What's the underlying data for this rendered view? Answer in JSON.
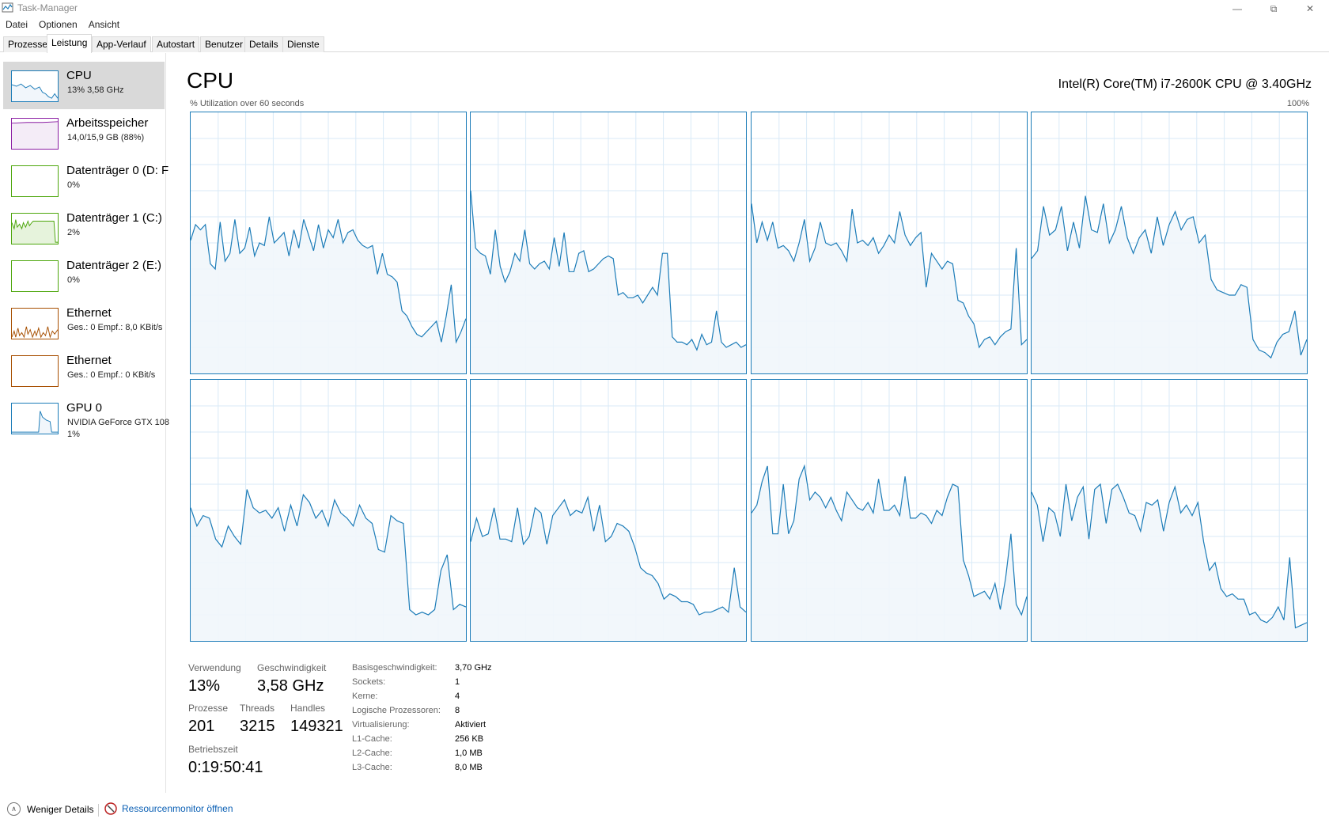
{
  "window": {
    "title": "Task-Manager"
  },
  "menu": [
    "Datei",
    "Optionen",
    "Ansicht"
  ],
  "tabs": [
    "Prozesse",
    "Leistung",
    "App-Verlauf",
    "Autostart",
    "Benutzer",
    "Details",
    "Dienste"
  ],
  "sidebar": [
    {
      "name": "CPU",
      "sub": "13% 3,58 GHz",
      "sub2": "",
      "color": "#1c7cb8"
    },
    {
      "name": "Arbeitsspeicher",
      "sub": "14,0/15,9 GB (88%)",
      "sub2": "",
      "color": "#8b1ea3"
    },
    {
      "name": "Datenträger 0 (D: F",
      "sub": "0%",
      "sub2": "",
      "color": "#4da60c"
    },
    {
      "name": "Datenträger 1 (C:)",
      "sub": "2%",
      "sub2": "",
      "color": "#4da60c"
    },
    {
      "name": "Datenträger 2 (E:)",
      "sub": "0%",
      "sub2": "",
      "color": "#4da60c"
    },
    {
      "name": "Ethernet",
      "sub": "Ges.: 0 Empf.: 8,0 KBit/s",
      "sub2": "",
      "color": "#a74f01"
    },
    {
      "name": "Ethernet",
      "sub": "Ges.: 0 Empf.: 0 KBit/s",
      "sub2": "",
      "color": "#a74f01"
    },
    {
      "name": "GPU 0",
      "sub": "NVIDIA GeForce GTX 108",
      "sub2": "1%",
      "color": "#1c7cb8"
    }
  ],
  "main": {
    "title": "CPU",
    "processor": "Intel(R) Core(TM) i7-2600K CPU @ 3.40GHz",
    "graph_label": "% Utilization over 60 seconds",
    "graph_max": "100%"
  },
  "stats": {
    "usage_label": "Verwendung",
    "usage_value": "13%",
    "speed_label": "Geschwindigkeit",
    "speed_value": "3,58 GHz",
    "processes_label": "Prozesse",
    "processes_value": "201",
    "threads_label": "Threads",
    "threads_value": "3215",
    "handles_label": "Handles",
    "handles_value": "149321",
    "uptime_label": "Betriebszeit",
    "uptime_value": "0:19:50:41"
  },
  "specs": [
    {
      "label": "Basisgeschwindigkeit:",
      "value": "3,70 GHz"
    },
    {
      "label": "Sockets:",
      "value": "1"
    },
    {
      "label": "Kerne:",
      "value": "4"
    },
    {
      "label": "Logische Prozessoren:",
      "value": "8"
    },
    {
      "label": "Virtualisierung:",
      "value": "Aktiviert"
    },
    {
      "label": "L1-Cache:",
      "value": "256 KB"
    },
    {
      "label": "L2-Cache:",
      "value": "1,0 MB"
    },
    {
      "label": "L3-Cache:",
      "value": "8,0 MB"
    }
  ],
  "footer": {
    "fewer_details": "Weniger Details",
    "resource_monitor": "Ressourcenmonitor öffnen"
  },
  "colors": {
    "cpu": "#1c7cb8",
    "cpu_fill": "#f1f6fb",
    "grid": "#d9eaf7"
  },
  "chart_data": {
    "type": "line",
    "ylim": [
      0,
      100
    ],
    "x_span_seconds": 60,
    "series": [
      {
        "values": [
          51,
          57,
          55,
          57,
          42,
          40,
          58,
          43,
          46,
          59,
          46,
          48,
          56,
          45,
          50,
          49,
          60,
          50,
          52,
          54,
          45,
          55,
          48,
          59,
          53,
          47,
          57,
          48,
          55,
          52,
          59,
          50,
          54,
          55,
          51,
          49,
          48,
          49,
          38,
          46,
          38,
          37,
          35,
          24,
          22,
          18,
          15,
          14,
          16,
          18,
          20,
          12,
          22,
          34,
          12,
          16,
          21
        ]
      },
      {
        "values": [
          70,
          48,
          46,
          45,
          38,
          55,
          41,
          35,
          39,
          46,
          43,
          55,
          42,
          40,
          42,
          43,
          40,
          52,
          41,
          54,
          39,
          39,
          46,
          47,
          39,
          40,
          42,
          44,
          45,
          44,
          30,
          31,
          29,
          29,
          30,
          27,
          30,
          33,
          30,
          46,
          46,
          14,
          12,
          12,
          11,
          13,
          9,
          15,
          11,
          12,
          24,
          12,
          10,
          11,
          12,
          10,
          11
        ]
      },
      {
        "values": [
          65,
          50,
          58,
          51,
          58,
          48,
          49,
          47,
          43,
          50,
          59,
          43,
          48,
          58,
          50,
          49,
          50,
          47,
          43,
          63,
          50,
          51,
          49,
          52,
          46,
          49,
          53,
          50,
          62,
          53,
          49,
          52,
          54,
          33,
          46,
          43,
          40,
          43,
          42,
          28,
          27,
          22,
          19,
          10,
          13,
          14,
          11,
          14,
          16,
          17,
          48,
          11,
          13
        ]
      },
      {
        "values": [
          44,
          47,
          64,
          53,
          55,
          64,
          47,
          58,
          48,
          68,
          55,
          54,
          65,
          50,
          55,
          64,
          52,
          46,
          52,
          55,
          46,
          60,
          49,
          57,
          62,
          55,
          59,
          60,
          50,
          53,
          36,
          32,
          31,
          30,
          30,
          34,
          33,
          13,
          9,
          8,
          6,
          12,
          15,
          16,
          24,
          7,
          13
        ]
      },
      {
        "values": [
          51,
          44,
          48,
          47,
          39,
          36,
          44,
          40,
          37,
          58,
          51,
          49,
          50,
          47,
          51,
          42,
          52,
          44,
          56,
          53,
          47,
          50,
          44,
          54,
          49,
          47,
          44,
          52,
          47,
          45,
          35,
          34,
          48,
          46,
          45,
          12,
          10,
          11,
          10,
          12,
          27,
          33,
          12,
          14,
          13
        ]
      },
      {
        "values": [
          38,
          47,
          40,
          41,
          51,
          39,
          39,
          38,
          51,
          37,
          40,
          51,
          49,
          37,
          48,
          51,
          54,
          48,
          50,
          49,
          55,
          42,
          52,
          38,
          40,
          45,
          44,
          42,
          36,
          28,
          26,
          25,
          22,
          16,
          18,
          17,
          15,
          15,
          14,
          10,
          11,
          11,
          12,
          13,
          11,
          28,
          13,
          11
        ]
      },
      {
        "values": [
          49,
          52,
          61,
          67,
          41,
          41,
          60,
          41,
          46,
          62,
          67,
          54,
          57,
          55,
          51,
          55,
          50,
          46,
          57,
          54,
          51,
          50,
          53,
          49,
          62,
          50,
          50,
          52,
          48,
          63,
          47,
          47,
          49,
          48,
          45,
          50,
          48,
          55,
          60,
          59,
          31,
          25,
          17,
          18,
          19,
          16,
          22,
          12,
          24,
          41,
          14,
          10,
          17
        ]
      },
      {
        "values": [
          57,
          52,
          38,
          51,
          49,
          40,
          60,
          46,
          55,
          59,
          39,
          58,
          60,
          45,
          58,
          60,
          55,
          49,
          48,
          42,
          53,
          52,
          54,
          42,
          53,
          59,
          49,
          52,
          48,
          53,
          38,
          27,
          30,
          20,
          17,
          18,
          16,
          16,
          10,
          11,
          8,
          7,
          9,
          13,
          8,
          32,
          5,
          6,
          7
        ]
      }
    ]
  }
}
